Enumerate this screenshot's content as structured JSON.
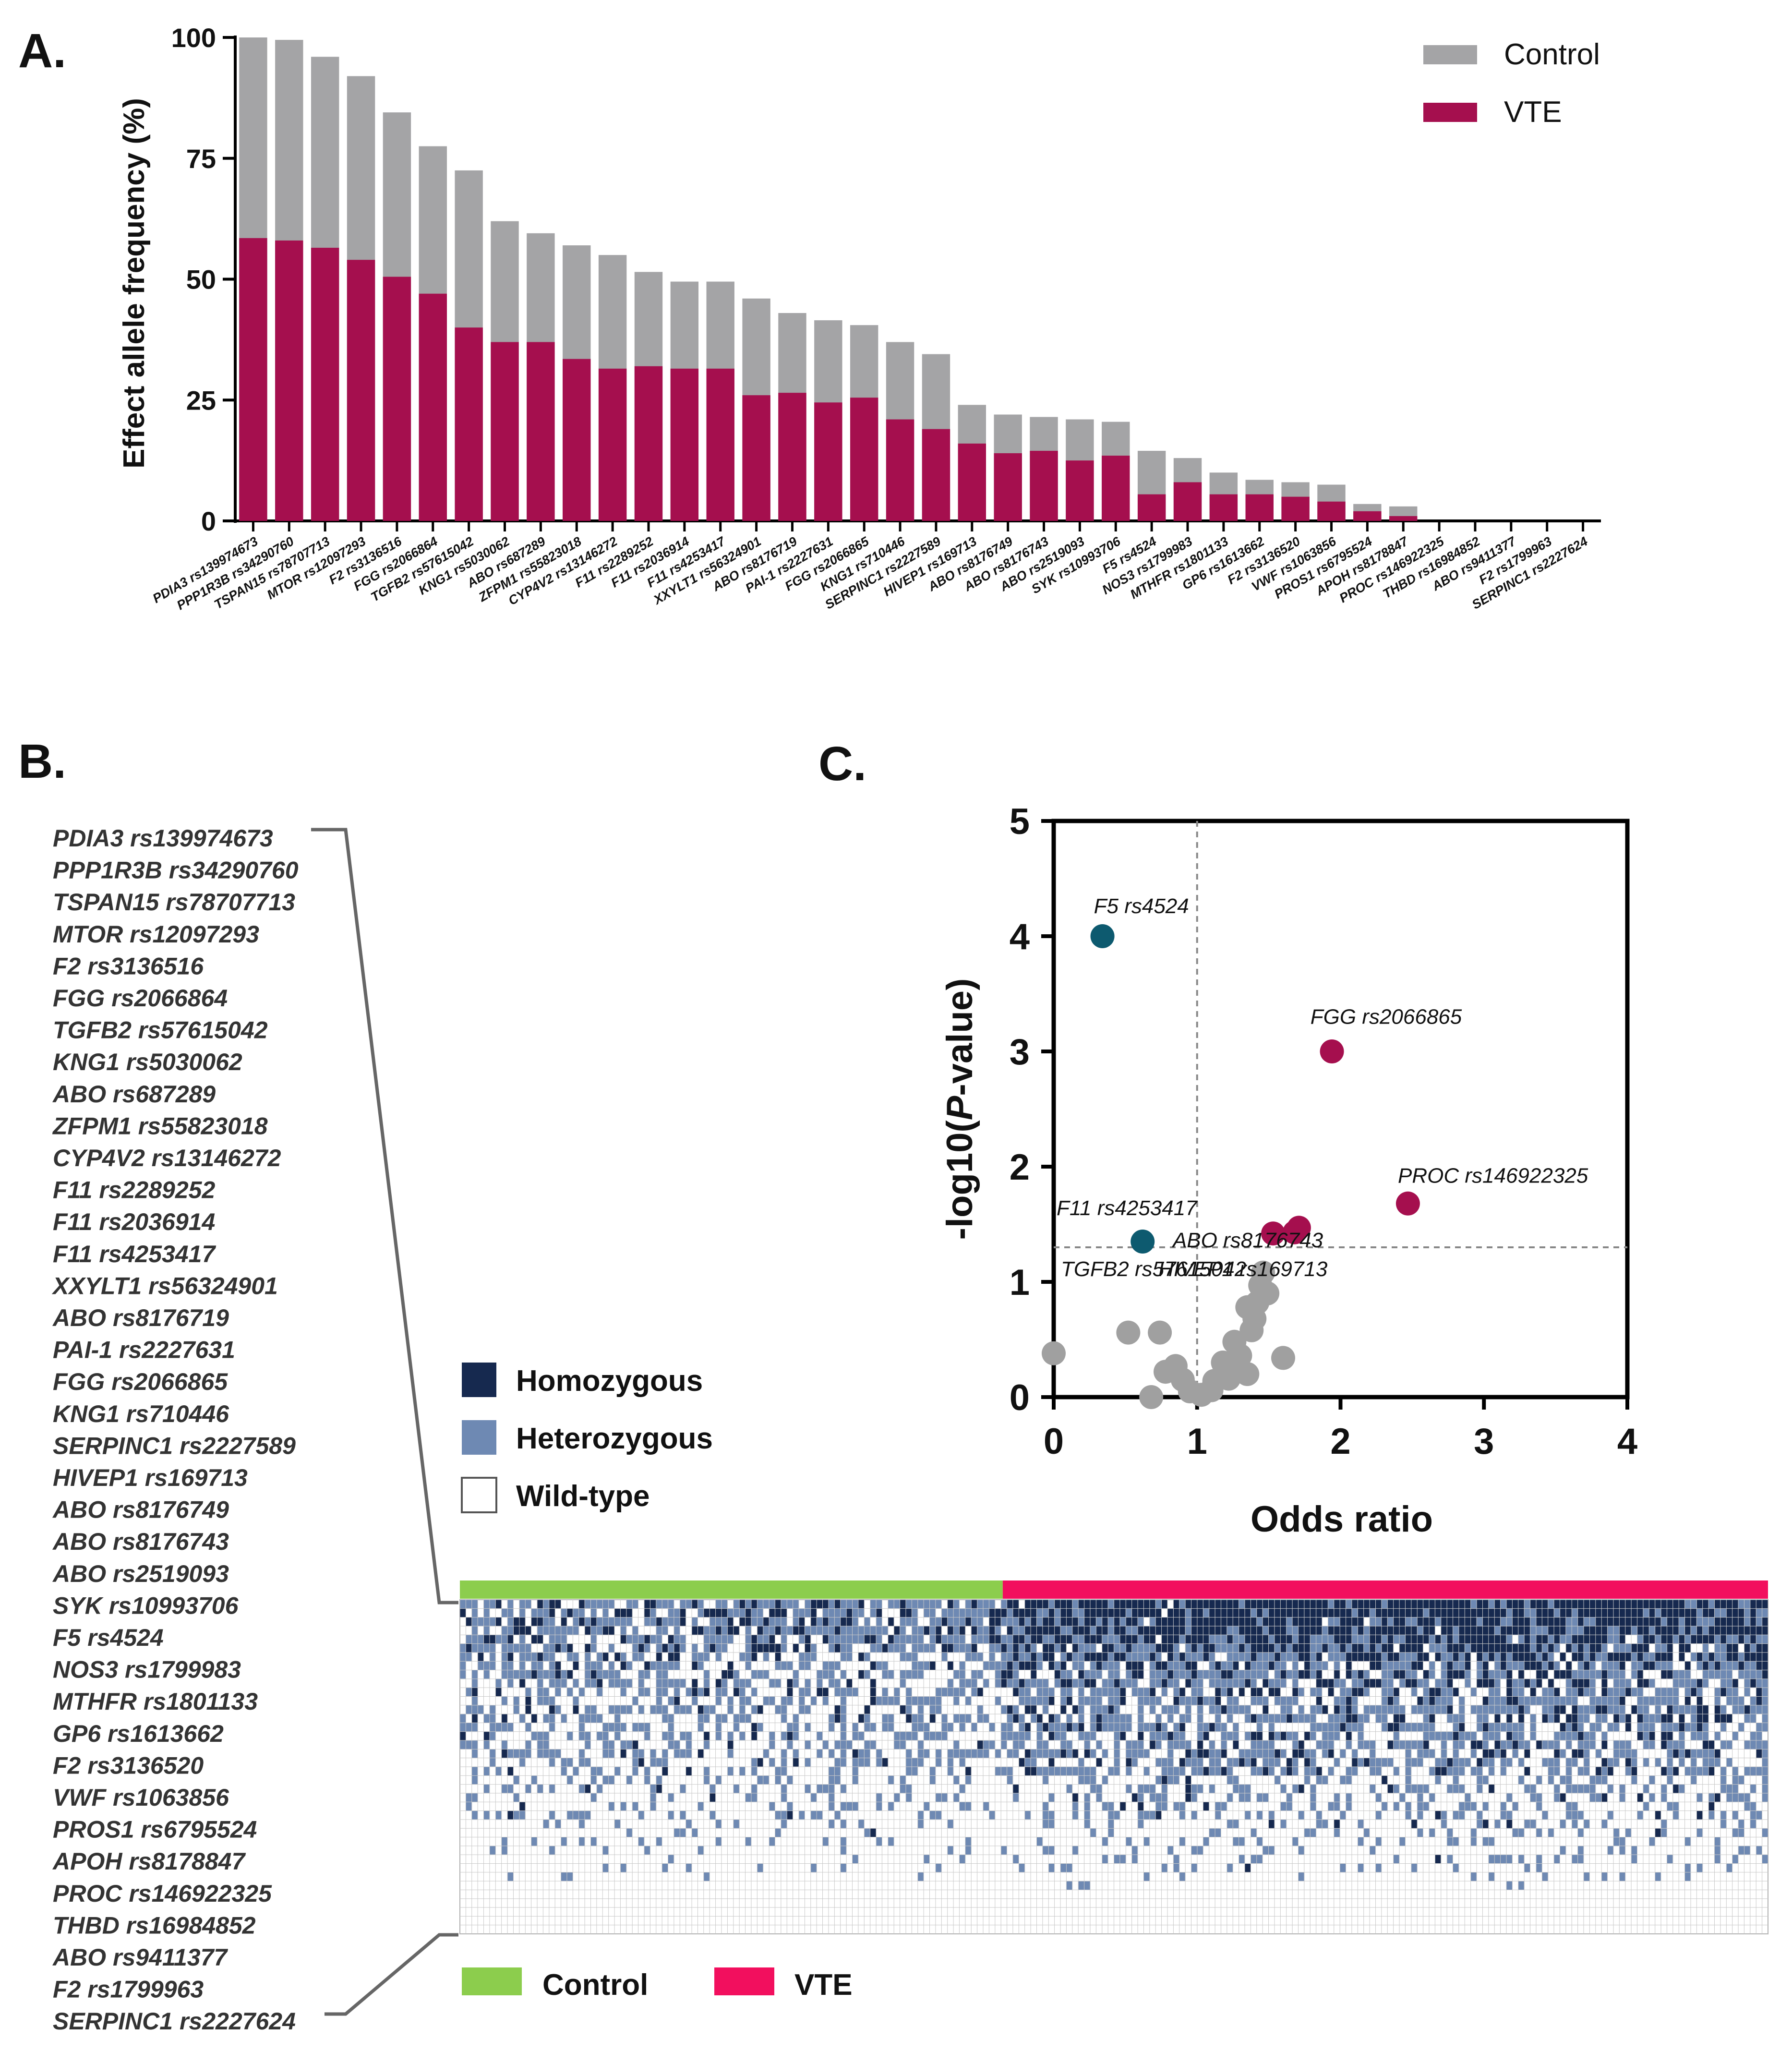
{
  "panels": {
    "a": "A.",
    "b": "B.",
    "c": "C."
  },
  "colors": {
    "control": "#a4a4a6",
    "vte": "#a50f4e",
    "teal": "#0d5a6f",
    "grey_point": "#a0a0a0",
    "homozygous": "#16294f",
    "heterozygous": "#6e89b3",
    "wild_type": "#ffffff",
    "control_bar": "#8ccd4d",
    "vte_bar": "#f20f5e"
  },
  "chart_data": [
    {
      "type": "bar",
      "title": "",
      "ylabel": "Effect allele frequency (%)",
      "ylim": [
        0,
        100
      ],
      "yticks": [
        "0",
        "25",
        "50",
        "75",
        "100"
      ],
      "legend": [
        "Control",
        "VTE"
      ],
      "categories": [
        "PDIA3 rs139974673",
        "PPP1R3B rs34290760",
        "TSPAN15 rs78707713",
        "MTOR rs12097293",
        "F2 rs3136516",
        "FGG rs2066864",
        "TGFB2 rs57615042",
        "KNG1 rs5030062",
        "ABO rs687289",
        "ZFPM1 rs55823018",
        "CYP4V2 rs13146272",
        "F11 rs2289252",
        "F11 rs2036914",
        "F11 rs4253417",
        "XXYLT1 rs56324901",
        "ABO rs8176719",
        "PAI-1 rs2227631",
        "FGG rs2066865",
        "KNG1 rs710446",
        "SERPINC1 rs2227589",
        "HIVEP1 rs169713",
        "ABO rs8176749",
        "ABO rs8176743",
        "ABO rs2519093",
        "SYK rs10993706",
        "F5 rs4524",
        "NOS3 rs1799983",
        "MTHFR rs1801133",
        "GP6 rs1613662",
        "F2 rs3136520",
        "VWF rs1063856",
        "PROS1 rs6795524",
        "APOH rs8178847",
        "PROC rs146922325",
        "THBD rs16984852",
        "ABO rs9411377",
        "F2 rs1799963",
        "SERPINC1 rs2227624"
      ],
      "series": [
        {
          "name": "Control",
          "values": [
            100,
            99.5,
            96,
            92,
            84.5,
            77.5,
            72.5,
            62,
            59.5,
            57,
            55,
            51.5,
            49.5,
            49.5,
            46,
            43,
            41.5,
            40.5,
            37,
            34.5,
            24,
            22,
            21.5,
            21,
            20.5,
            14.5,
            13,
            10,
            8.5,
            8,
            7.5,
            3.5,
            3,
            0,
            0,
            0,
            0,
            0
          ]
        },
        {
          "name": "VTE",
          "values": [
            58.5,
            58,
            56.5,
            54,
            50.5,
            47,
            40,
            37,
            37,
            33.5,
            31.5,
            32,
            31.5,
            31.5,
            26,
            26.5,
            24.5,
            25.5,
            21,
            19,
            16,
            14,
            14.5,
            12.5,
            13.5,
            5.5,
            8,
            5.5,
            5.5,
            5,
            4,
            2,
            1,
            0,
            0,
            0,
            0,
            0
          ]
        }
      ]
    },
    {
      "type": "scatter",
      "xlabel": "Odds ratio",
      "ylabel": "-log10(P-value)",
      "xlim": [
        0,
        4
      ],
      "ylim": [
        0,
        5
      ],
      "xticks": [
        "0",
        "1",
        "2",
        "3",
        "4"
      ],
      "yticks": [
        "0",
        "1",
        "2",
        "3",
        "4",
        "5"
      ],
      "thresholds": {
        "x": 1,
        "y": 1.3
      },
      "highlighted": [
        {
          "label": "F5 rs4524",
          "x": 0.34,
          "y": 4.0,
          "group": "protective"
        },
        {
          "label": "TGFB2 rs57615042",
          "x": 0.62,
          "y": 1.35,
          "group": "protective"
        },
        {
          "label": "FGG rs2066865",
          "x": 1.94,
          "y": 3.0,
          "group": "risk"
        },
        {
          "label": "PROC rs146922325",
          "x": 2.47,
          "y": 1.68,
          "group": "risk"
        },
        {
          "label": "F11 rs4253417",
          "x": 1.53,
          "y": 1.42,
          "group": "risk"
        },
        {
          "label": "HIVEP1 rs169713",
          "x": 1.68,
          "y": 1.43,
          "group": "risk"
        },
        {
          "label": "ABO rs8176743",
          "x": 1.71,
          "y": 1.47,
          "group": "risk"
        }
      ],
      "other_points": [
        {
          "x": 0.0,
          "y": 0.38
        },
        {
          "x": 0.52,
          "y": 0.56
        },
        {
          "x": 0.74,
          "y": 0.56
        },
        {
          "x": 0.68,
          "y": 0.0
        },
        {
          "x": 0.78,
          "y": 0.22
        },
        {
          "x": 0.85,
          "y": 0.27
        },
        {
          "x": 0.9,
          "y": 0.15
        },
        {
          "x": 0.95,
          "y": 0.05
        },
        {
          "x": 1.03,
          "y": 0.02
        },
        {
          "x": 1.1,
          "y": 0.06
        },
        {
          "x": 1.12,
          "y": 0.14
        },
        {
          "x": 1.18,
          "y": 0.3
        },
        {
          "x": 1.22,
          "y": 0.16
        },
        {
          "x": 1.26,
          "y": 0.48
        },
        {
          "x": 1.28,
          "y": 0.22
        },
        {
          "x": 1.3,
          "y": 0.36
        },
        {
          "x": 1.35,
          "y": 0.2
        },
        {
          "x": 1.38,
          "y": 0.58
        },
        {
          "x": 1.4,
          "y": 0.68
        },
        {
          "x": 1.42,
          "y": 0.82
        },
        {
          "x": 1.44,
          "y": 0.97
        },
        {
          "x": 1.46,
          "y": 1.08
        },
        {
          "x": 1.49,
          "y": 0.9
        },
        {
          "x": 1.35,
          "y": 0.78
        },
        {
          "x": 1.6,
          "y": 0.34
        }
      ]
    },
    {
      "type": "heatmap",
      "rows": [
        "PDIA3 rs139974673",
        "PPP1R3B rs34290760",
        "TSPAN15 rs78707713",
        "MTOR rs12097293",
        "F2 rs3136516",
        "FGG rs2066864",
        "TGFB2 rs57615042",
        "KNG1 rs5030062",
        "ABO rs687289",
        "ZFPM1 rs55823018",
        "CYP4V2 rs13146272",
        "F11 rs2289252",
        "F11 rs2036914",
        "F11 rs4253417",
        "XXYLT1 rs56324901",
        "ABO rs8176719",
        "PAI-1 rs2227631",
        "FGG rs2066865",
        "KNG1 rs710446",
        "SERPINC1 rs2227589",
        "HIVEP1 rs169713",
        "ABO rs8176749",
        "ABO rs8176743",
        "ABO rs2519093",
        "SYK rs10993706",
        "F5 rs4524",
        "NOS3 rs1799983",
        "MTHFR rs1801133",
        "GP6 rs1613662",
        "F2 rs3136520",
        "VWF rs1063856",
        "PROS1 rs6795524",
        "APOH rs8178847",
        "PROC rs146922325",
        "THBD rs16984852",
        "ABO rs9411377",
        "F2 rs1799963",
        "SERPINC1 rs2227624"
      ],
      "legend": [
        "Homozygous",
        "Heterozygous",
        "Wild-type"
      ],
      "groups": [
        {
          "name": "Control",
          "fraction": 0.415
        },
        {
          "name": "VTE",
          "fraction": 0.585
        }
      ]
    }
  ]
}
